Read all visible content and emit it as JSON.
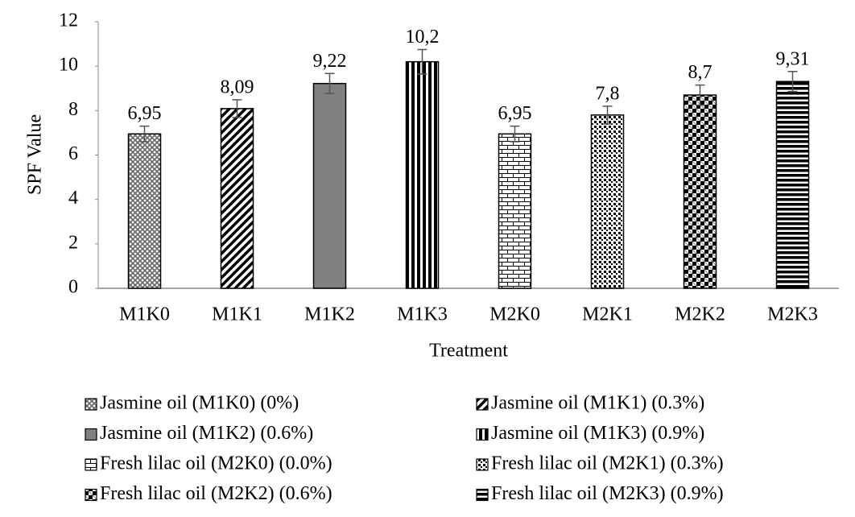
{
  "chart_data": {
    "type": "bar",
    "x_label": "Treatment",
    "y_label": "SPF Value",
    "categories": [
      "M1K0",
      "M1K1",
      "M1K2",
      "M1K3",
      "M2K0",
      "M2K1",
      "M2K2",
      "M2K3"
    ],
    "values": [
      6.95,
      8.09,
      9.22,
      10.2,
      6.95,
      7.8,
      8.7,
      9.31
    ],
    "value_labels": [
      "6,95",
      "8,09",
      "9,22",
      "10,2",
      "6,95",
      "7,8",
      "8,7",
      "9,31"
    ],
    "errors": [
      0.35,
      0.4,
      0.45,
      0.55,
      0.35,
      0.4,
      0.45,
      0.45
    ],
    "patterns": [
      "crosshatch",
      "diagonal",
      "solid",
      "vertical",
      "brick",
      "dots",
      "checker",
      "horizontal"
    ],
    "legend_labels": [
      "Jasmine oil (M1K0) (0%)",
      "Jasmine oil (M1K1) (0.3%)",
      "Jasmine oil (M1K2) (0.6%)",
      "Jasmine oil (M1K3) (0.9%)",
      "Fresh lilac oil (M2K0) (0.0%)",
      "Fresh lilac oil (M2K1) (0.3%)",
      "Fresh lilac oil (M2K2) (0.6%)",
      "Fresh lilac oil (M2K3) (0.9%)"
    ],
    "ylim": [
      0,
      12
    ],
    "yticks": [
      0,
      2,
      4,
      6,
      8,
      10,
      12
    ],
    "grid": false
  }
}
